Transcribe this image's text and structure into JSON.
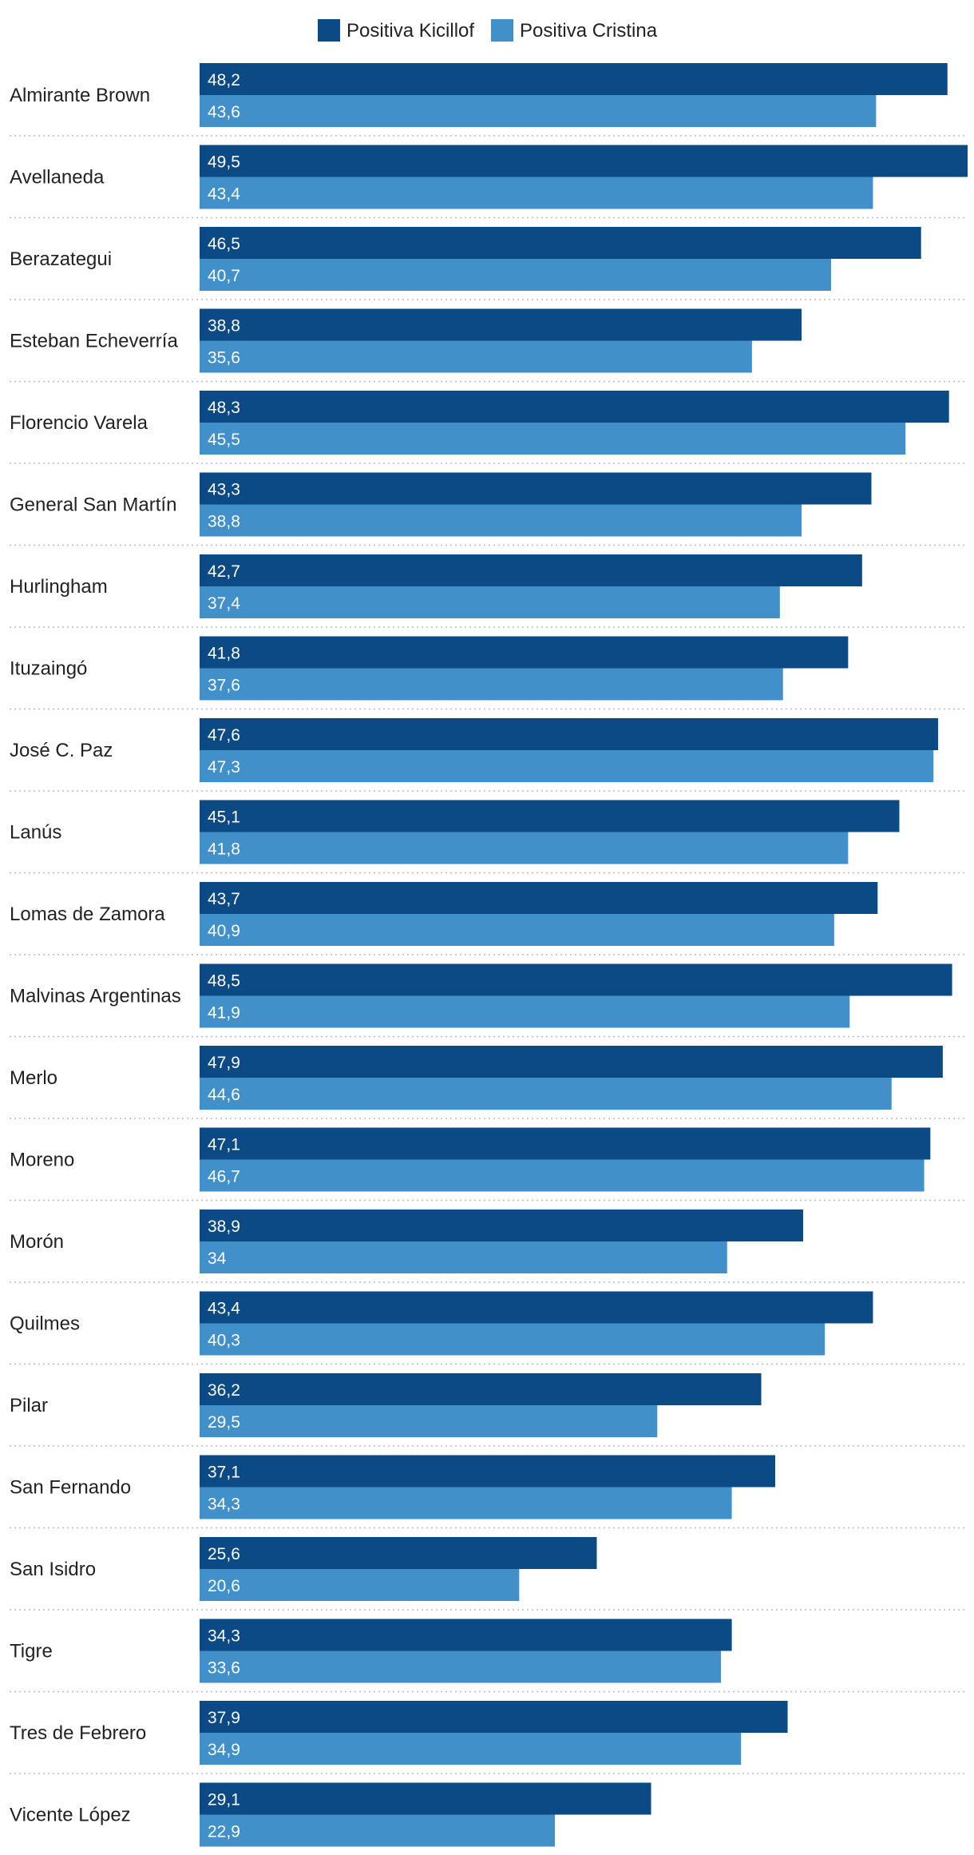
{
  "chart_data": {
    "type": "bar",
    "orientation": "horizontal",
    "title": "",
    "xlabel": "",
    "ylabel": "",
    "xlim": [
      0,
      49.5
    ],
    "grid": false,
    "legend_position": "top-center",
    "categories": [
      "Almirante Brown",
      "Avellaneda",
      "Berazategui",
      "Esteban Echeverría",
      "Florencio Varela",
      "General San Martín",
      "Hurlingham",
      "Ituzaingó",
      "José C. Paz",
      "Lanús",
      "Lomas de Zamora",
      "Malvinas Argentinas",
      "Merlo",
      "Moreno",
      "Morón",
      "Quilmes",
      "Pilar",
      "San Fernando",
      "San Isidro",
      "Tigre",
      "Tres de Febrero",
      "Vicente López"
    ],
    "series": [
      {
        "name": "Positiva Kicillof",
        "color": "#0b4a85",
        "values": [
          48.2,
          49.5,
          46.5,
          38.8,
          48.3,
          43.3,
          42.7,
          41.8,
          47.6,
          45.1,
          43.7,
          48.5,
          47.9,
          47.1,
          38.9,
          43.4,
          36.2,
          37.1,
          25.6,
          34.3,
          37.9,
          29.1
        ],
        "labels": [
          "48,2",
          "49,5",
          "46,5",
          "38,8",
          "48,3",
          "43,3",
          "42,7",
          "41,8",
          "47,6",
          "45,1",
          "43,7",
          "48,5",
          "47,9",
          "47,1",
          "38,9",
          "43,4",
          "36,2",
          "37,1",
          "25,6",
          "34,3",
          "37,9",
          "29,1"
        ]
      },
      {
        "name": "Positiva Cristina",
        "color": "#4190ca",
        "values": [
          43.6,
          43.4,
          40.7,
          35.6,
          45.5,
          38.8,
          37.4,
          37.6,
          47.3,
          41.8,
          40.9,
          41.9,
          44.6,
          46.7,
          34,
          40.3,
          29.5,
          34.3,
          20.6,
          33.6,
          34.9,
          22.9
        ],
        "labels": [
          "43,6",
          "43,4",
          "40,7",
          "35,6",
          "45,5",
          "38,8",
          "37,4",
          "37,6",
          "47,3",
          "41,8",
          "40,9",
          "41,9",
          "44,6",
          "46,7",
          "34",
          "40,3",
          "29,5",
          "34,3",
          "20,6",
          "33,6",
          "34,9",
          "22,9"
        ]
      }
    ]
  }
}
